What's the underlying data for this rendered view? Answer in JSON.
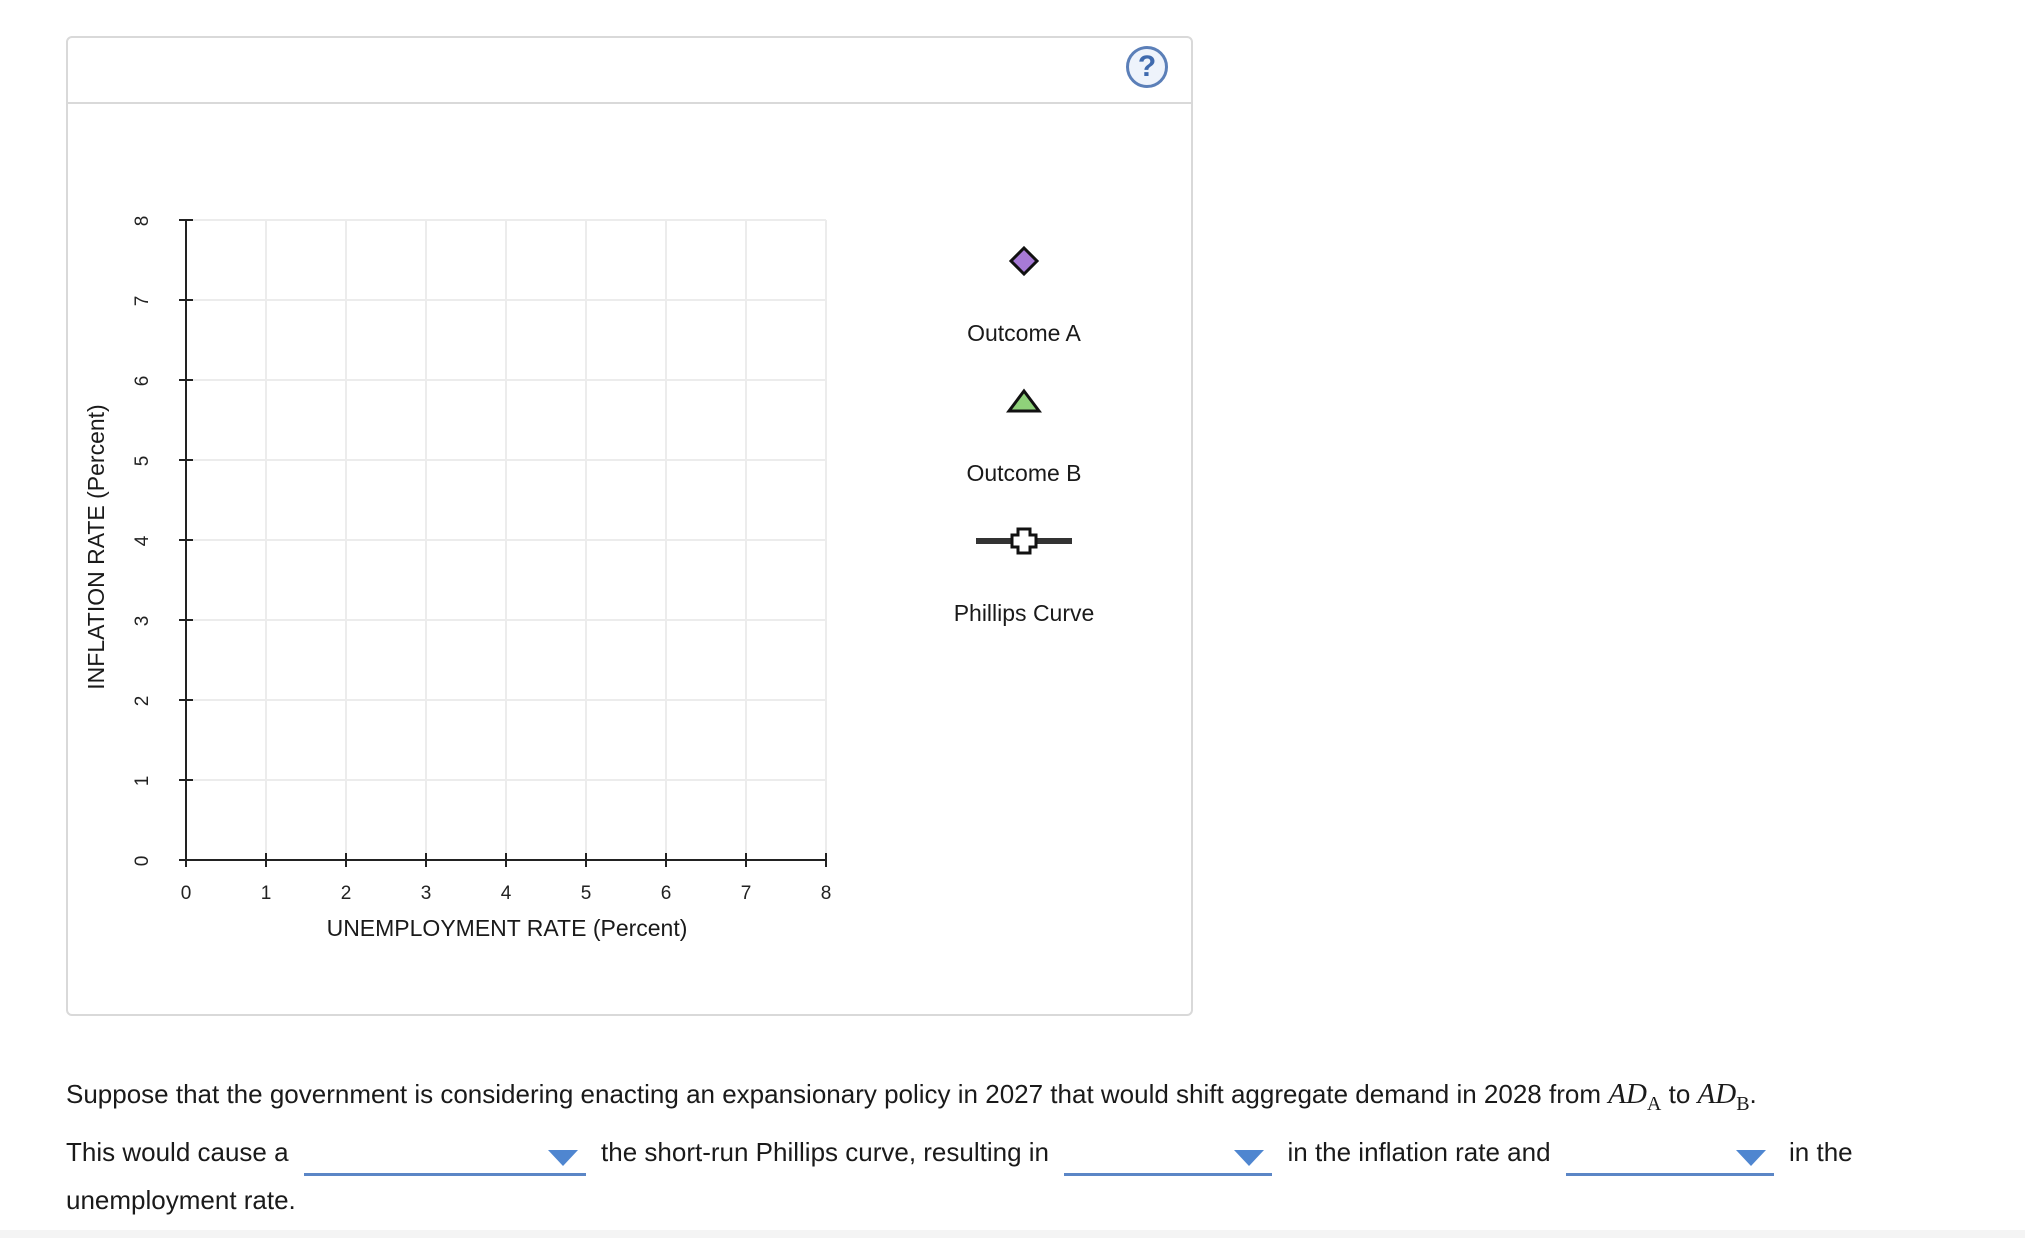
{
  "help": {
    "label": "?"
  },
  "chart_data": {
    "type": "scatter",
    "xlabel": "UNEMPLOYMENT RATE (Percent)",
    "ylabel": "INFLATION RATE (Percent)",
    "xlim": [
      0,
      8
    ],
    "ylim": [
      0,
      8
    ],
    "xticks": [
      "0",
      "1",
      "2",
      "3",
      "4",
      "5",
      "6",
      "7",
      "8"
    ],
    "yticks": [
      "0",
      "1",
      "2",
      "3",
      "4",
      "5",
      "6",
      "7",
      "8"
    ],
    "grid": true,
    "series": []
  },
  "legend": {
    "items": [
      {
        "label": "Outcome A",
        "marker": "diamond",
        "color": "#a77ad6"
      },
      {
        "label": "Outcome B",
        "marker": "triangle",
        "color": "#8fd17a"
      },
      {
        "label": "Phillips Curve",
        "marker": "cross-line",
        "color": "#333333"
      }
    ]
  },
  "question": {
    "line1_text": "Suppose that the government is considering enacting an expansionary policy in 2027 that would shift aggregate demand in 2028 from",
    "ad_a_main": "AD",
    "ad_a_sub": "A",
    "to_text": "to",
    "ad_b_main": "AD",
    "ad_b_sub": "B",
    "period": ".",
    "part1": "This would cause a",
    "part2": "the short-run Phillips curve, resulting in",
    "part3": "in the inflation rate and",
    "part4": "in the",
    "part5": "unemployment rate.",
    "dropdown1_value": "",
    "dropdown2_value": "",
    "dropdown3_value": ""
  }
}
